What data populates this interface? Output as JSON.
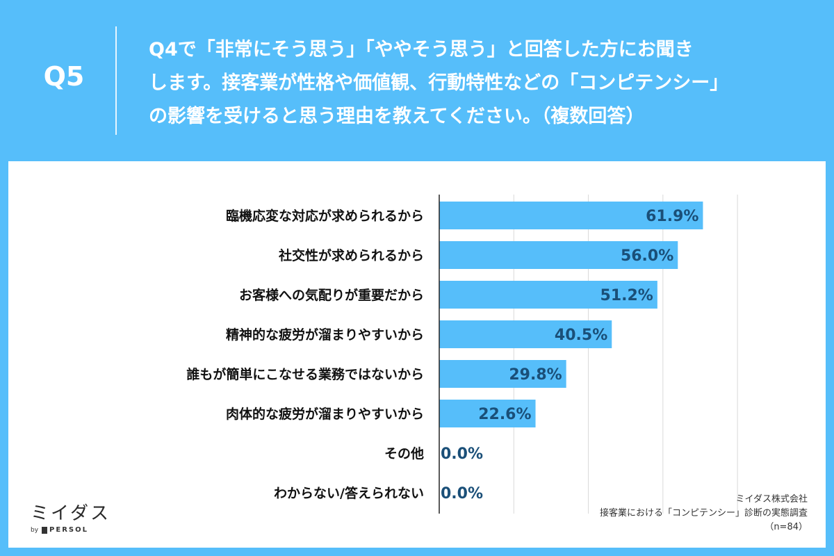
{
  "question": {
    "label": "Q5",
    "lines": [
      "Q4で「非常にそう思う」「ややそう思う」と回答した方にお聞き",
      "します。接客業が性格や価値観、行動特性などの「コンピテンシー」",
      "の影響を受けると思う理由を教えてください。（複数回答）"
    ]
  },
  "chart_data": {
    "type": "bar",
    "orientation": "horizontal",
    "categories": [
      "臨機応変な対応が求められるから",
      "社交性が求められるから",
      "お客様への気配りが重要だから",
      "精神的な疲労が溜まりやすいから",
      "誰もが簡単にこなせる業務ではないから",
      "肉体的な疲労が溜まりやすいから",
      "その他",
      "わからない/答えられない"
    ],
    "values": [
      61.9,
      56.0,
      51.2,
      40.5,
      29.8,
      22.6,
      0.0,
      0.0
    ],
    "value_labels": [
      "61.9%",
      "56.0%",
      "51.2%",
      "40.5%",
      "29.8%",
      "22.6%",
      "0.0%",
      "0.0%"
    ],
    "xlim": [
      0,
      70
    ],
    "grid_step": 17.5,
    "grid": true,
    "bar_color": "#56befa"
  },
  "logo": {
    "main": "ミイダス",
    "by": "by",
    "brand": "PERSOL"
  },
  "source": {
    "company": "ミイダス株式会社",
    "survey": "接客業における「コンピテンシー」診断の実態調査",
    "n": "（n=84）"
  },
  "colors": {
    "background": "#56befa",
    "value_text": "#1a4f78"
  }
}
